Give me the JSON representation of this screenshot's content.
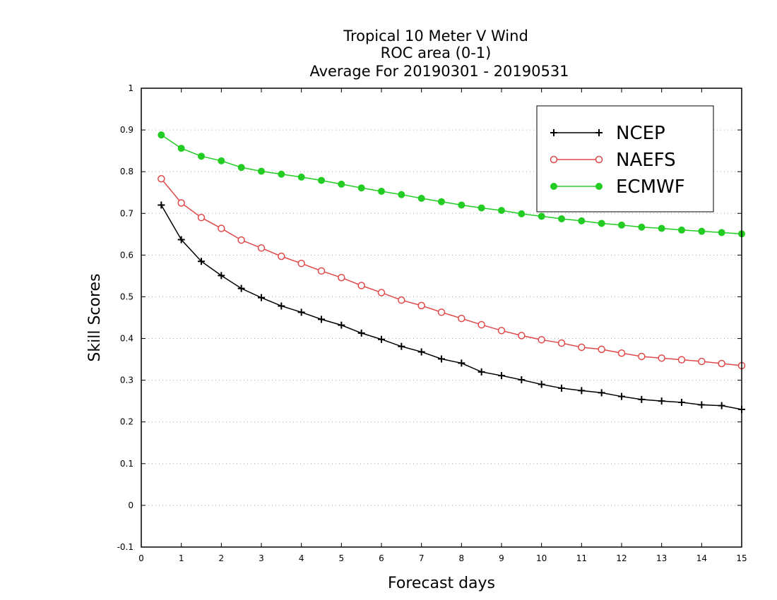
{
  "chart_data": {
    "type": "line",
    "title": [
      "Tropical 10 Meter V Wind",
      "ROC area (0-1)",
      "Average For 20190301 - 20190531"
    ],
    "xlabel": "Forecast days",
    "ylabel": "Skill Scores",
    "xlim": [
      0,
      15
    ],
    "ylim": [
      -0.1,
      1
    ],
    "xticks": [
      "0",
      "1",
      "2",
      "3",
      "4",
      "5",
      "6",
      "7",
      "8",
      "9",
      "10",
      "11",
      "12",
      "13",
      "14",
      "15"
    ],
    "yticks": [
      "-0.1",
      "0",
      "0.1",
      "0.2",
      "0.3",
      "0.4",
      "0.5",
      "0.6",
      "0.7",
      "0.8",
      "0.9",
      "1"
    ],
    "grid": true,
    "legend_position": "top-right",
    "x": [
      0.5,
      1,
      1.5,
      2,
      2.5,
      3,
      3.5,
      4,
      4.5,
      5,
      5.5,
      6,
      6.5,
      7,
      7.5,
      8,
      8.5,
      9,
      9.5,
      10,
      10.5,
      11,
      11.5,
      12,
      12.5,
      13,
      13.5,
      14,
      14.5,
      15
    ],
    "series": [
      {
        "name": "NCEP",
        "color": "#000000",
        "marker": "plus",
        "values": [
          0.72,
          0.637,
          0.585,
          0.551,
          0.52,
          0.498,
          0.478,
          0.463,
          0.446,
          0.432,
          0.413,
          0.398,
          0.381,
          0.368,
          0.351,
          0.341,
          0.32,
          0.311,
          0.301,
          0.29,
          0.281,
          0.275,
          0.27,
          0.261,
          0.254,
          0.25,
          0.247,
          0.241,
          0.239,
          0.23
        ]
      },
      {
        "name": "NAEFS",
        "color": "#e04848",
        "marker": "open-circle",
        "values": [
          0.783,
          0.725,
          0.69,
          0.664,
          0.636,
          0.617,
          0.597,
          0.58,
          0.562,
          0.546,
          0.527,
          0.51,
          0.492,
          0.479,
          0.463,
          0.448,
          0.433,
          0.419,
          0.407,
          0.397,
          0.389,
          0.379,
          0.374,
          0.365,
          0.357,
          0.353,
          0.349,
          0.345,
          0.34,
          0.335
        ]
      },
      {
        "name": "ECMWF",
        "color": "#22cc22",
        "marker": "filled-circle",
        "values": [
          0.888,
          0.856,
          0.837,
          0.826,
          0.81,
          0.801,
          0.794,
          0.787,
          0.779,
          0.77,
          0.761,
          0.753,
          0.745,
          0.736,
          0.728,
          0.72,
          0.713,
          0.707,
          0.699,
          0.693,
          0.687,
          0.682,
          0.676,
          0.672,
          0.667,
          0.664,
          0.66,
          0.657,
          0.654,
          0.651
        ]
      }
    ]
  }
}
